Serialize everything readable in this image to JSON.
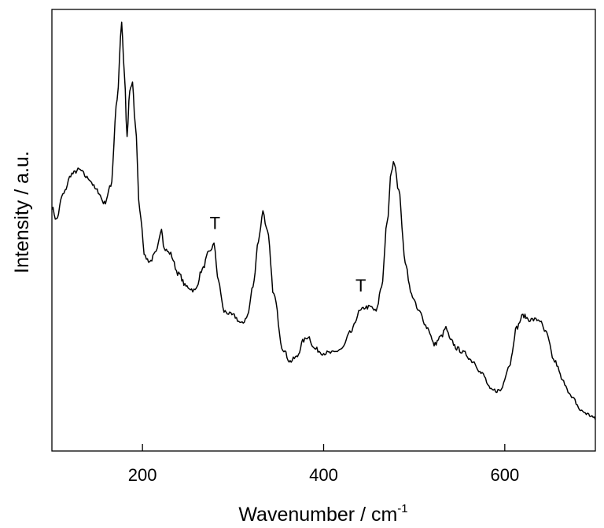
{
  "chart_data": {
    "type": "line",
    "title": "",
    "xlabel": "Wavenumber / cm",
    "xlabel_superscript": "-1",
    "ylabel": "Intensity / a.u.",
    "xlim": [
      100,
      700
    ],
    "ylim": [
      0,
      100
    ],
    "y_ticks_shown": false,
    "grid": false,
    "legend": "none",
    "x_ticks": [
      {
        "value": 200,
        "label": "200"
      },
      {
        "value": 400,
        "label": "400"
      },
      {
        "value": 600,
        "label": "600"
      }
    ],
    "annotations": [
      {
        "text": "T",
        "x": 280,
        "y": 48
      },
      {
        "text": "T",
        "x": 441,
        "y": 33
      }
    ],
    "series": [
      {
        "color": "#000000",
        "points": [
          [
            100,
            54
          ],
          [
            105,
            51
          ],
          [
            112,
            57
          ],
          [
            122,
            62
          ],
          [
            130,
            63
          ],
          [
            140,
            61
          ],
          [
            150,
            58
          ],
          [
            158,
            55
          ],
          [
            165,
            59
          ],
          [
            172,
            80
          ],
          [
            177,
            98
          ],
          [
            180,
            86
          ],
          [
            183,
            71
          ],
          [
            186,
            82
          ],
          [
            189,
            84
          ],
          [
            192,
            74
          ],
          [
            197,
            53
          ],
          [
            203,
            42
          ],
          [
            208,
            41
          ],
          [
            215,
            43
          ],
          [
            221,
            49
          ],
          [
            224,
            44
          ],
          [
            230,
            43
          ],
          [
            240,
            38
          ],
          [
            248,
            35
          ],
          [
            258,
            34
          ],
          [
            266,
            39
          ],
          [
            273,
            43
          ],
          [
            279,
            45
          ],
          [
            284,
            36
          ],
          [
            290,
            29
          ],
          [
            300,
            28
          ],
          [
            310,
            26
          ],
          [
            316,
            28
          ],
          [
            322,
            35
          ],
          [
            328,
            46
          ],
          [
            333,
            53
          ],
          [
            338,
            48
          ],
          [
            345,
            33
          ],
          [
            355,
            20
          ],
          [
            363,
            17
          ],
          [
            370,
            18
          ],
          [
            378,
            22
          ],
          [
            383,
            23
          ],
          [
            390,
            20
          ],
          [
            400,
            19
          ],
          [
            410,
            19
          ],
          [
            420,
            20
          ],
          [
            430,
            24
          ],
          [
            440,
            29
          ],
          [
            446,
            30
          ],
          [
            452,
            30
          ],
          [
            458,
            29
          ],
          [
            464,
            35
          ],
          [
            470,
            50
          ],
          [
            475,
            63
          ],
          [
            478,
            65
          ],
          [
            483,
            58
          ],
          [
            490,
            41
          ],
          [
            497,
            33
          ],
          [
            505,
            29
          ],
          [
            515,
            25
          ],
          [
            522,
            21
          ],
          [
            530,
            23
          ],
          [
            535,
            25
          ],
          [
            540,
            22
          ],
          [
            548,
            20
          ],
          [
            555,
            19
          ],
          [
            565,
            17
          ],
          [
            575,
            14
          ],
          [
            585,
            10
          ],
          [
            595,
            10
          ],
          [
            605,
            16
          ],
          [
            613,
            25
          ],
          [
            620,
            28
          ],
          [
            628,
            27
          ],
          [
            638,
            27
          ],
          [
            645,
            24
          ],
          [
            655,
            17
          ],
          [
            665,
            12
          ],
          [
            675,
            8
          ],
          [
            685,
            5
          ],
          [
            695,
            4
          ],
          [
            700,
            3
          ]
        ]
      }
    ]
  }
}
